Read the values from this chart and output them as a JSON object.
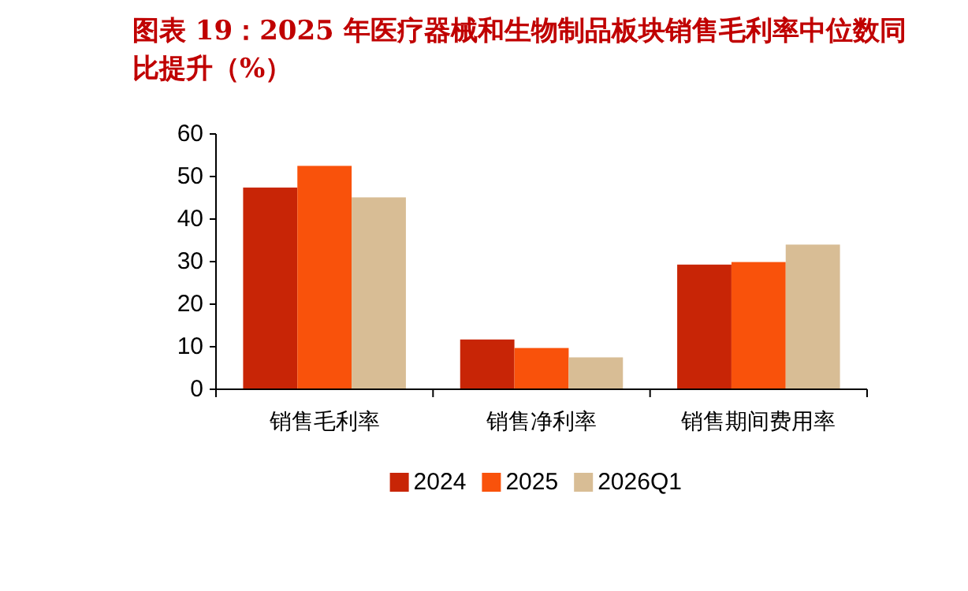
{
  "chart_data": {
    "type": "bar",
    "title": "图表 19：2025 年医疗器械和生物制品板块销售毛利率中位数同比提升（%）",
    "categories": [
      "销售毛利率",
      "销售净利率",
      "销售期间费用率"
    ],
    "series": [
      {
        "name": "2024",
        "color": "#c82506",
        "values": [
          47.4,
          11.7,
          29.3
        ]
      },
      {
        "name": "2025",
        "color": "#f9520b",
        "values": [
          52.5,
          9.7,
          29.9
        ]
      },
      {
        "name": "2026Q1",
        "color": "#d8bd95",
        "values": [
          45.1,
          7.5,
          34.0
        ]
      }
    ],
    "ylim": [
      0,
      60
    ],
    "yticks": [
      0,
      10,
      20,
      30,
      40,
      50,
      60
    ],
    "legend": "bottom"
  }
}
